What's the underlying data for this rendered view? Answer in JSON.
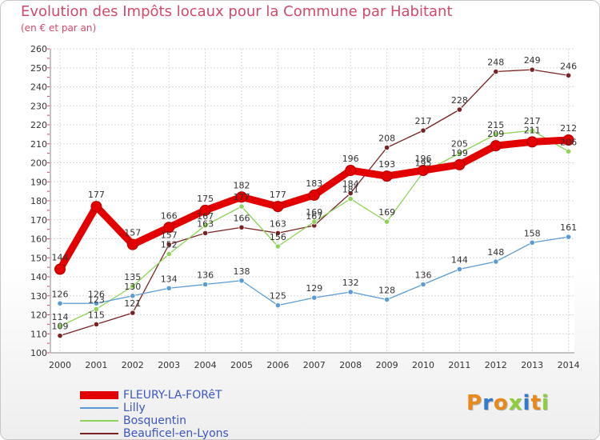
{
  "header": {
    "title": "Evolution des Impôts locaux pour la Commune par Habitant",
    "subtitle": "(en € et par an)"
  },
  "chart_data": {
    "type": "line",
    "title": "Evolution des Impôts locaux pour la Commune par Habitant",
    "subtitle": "(en € et par an)",
    "xlabel": "",
    "ylabel": "",
    "x": [
      "2000",
      "2001",
      "2002",
      "2003",
      "2004",
      "2005",
      "2006",
      "2007",
      "2008",
      "2009",
      "2010",
      "2011",
      "2012",
      "2013",
      "2014"
    ],
    "ylim": [
      100,
      260
    ],
    "yticks": [
      100,
      110,
      120,
      130,
      140,
      150,
      160,
      170,
      180,
      190,
      200,
      210,
      220,
      230,
      240,
      250,
      260
    ],
    "grid": true,
    "legend_position": "bottom-left",
    "series": [
      {
        "name": "FLEURY-LA-FORêT",
        "color": "#e20000",
        "values": [
          144,
          177,
          157,
          166,
          175,
          182,
          177,
          183,
          196,
          193,
          196,
          199,
          209,
          211,
          212
        ],
        "labels": [
          "144",
          "177",
          "157",
          "166",
          "175",
          "182",
          "177",
          "183",
          "196",
          "193",
          "196",
          "199",
          "209",
          "211",
          "212"
        ]
      },
      {
        "name": "Lilly",
        "color": "#5b9bd5",
        "values": [
          126,
          126,
          130,
          134,
          136,
          138,
          125,
          129,
          132,
          128,
          136,
          144,
          148,
          158,
          161
        ],
        "labels": [
          "126",
          "126",
          "130",
          "134",
          "136",
          "138",
          "125",
          "129",
          "132",
          "128",
          "136",
          "144",
          "148",
          "158",
          "161"
        ]
      },
      {
        "name": "Bosquentin",
        "color": "#8ed45a",
        "values": [
          114,
          123,
          135,
          152,
          167,
          177,
          156,
          169,
          181,
          169,
          195,
          205,
          215,
          217,
          206
        ],
        "labels": [
          "114",
          "123",
          "135",
          "152",
          "167",
          "177",
          "156",
          "169",
          "181",
          "169",
          "195",
          "205",
          "215",
          "217",
          "206"
        ]
      },
      {
        "name": "Beauficel-en-Lyons",
        "color": "#7a2222",
        "values": [
          109,
          115,
          121,
          157,
          163,
          166,
          163,
          167,
          184,
          208,
          217,
          228,
          248,
          249,
          246
        ],
        "labels": [
          "109",
          "115",
          "121",
          "157",
          "163",
          "166",
          "163",
          "167",
          "184",
          "208",
          "217",
          "228",
          "248",
          "249",
          "246"
        ]
      }
    ]
  },
  "legend": {
    "items": [
      {
        "label": "FLEURY-LA-FORêT",
        "color": "#e20000"
      },
      {
        "label": "Lilly",
        "color": "#5b9bd5"
      },
      {
        "label": "Bosquentin",
        "color": "#8ed45a"
      },
      {
        "label": "Beauficel-en-Lyons",
        "color": "#7a2222"
      }
    ]
  },
  "logo": {
    "text": "Proxiti",
    "colors": [
      "#e8891a",
      "#2e7bd1",
      "#e8891a",
      "#8ccf3a",
      "#2e7bd1",
      "#e8891a",
      "#8ccf3a"
    ]
  }
}
